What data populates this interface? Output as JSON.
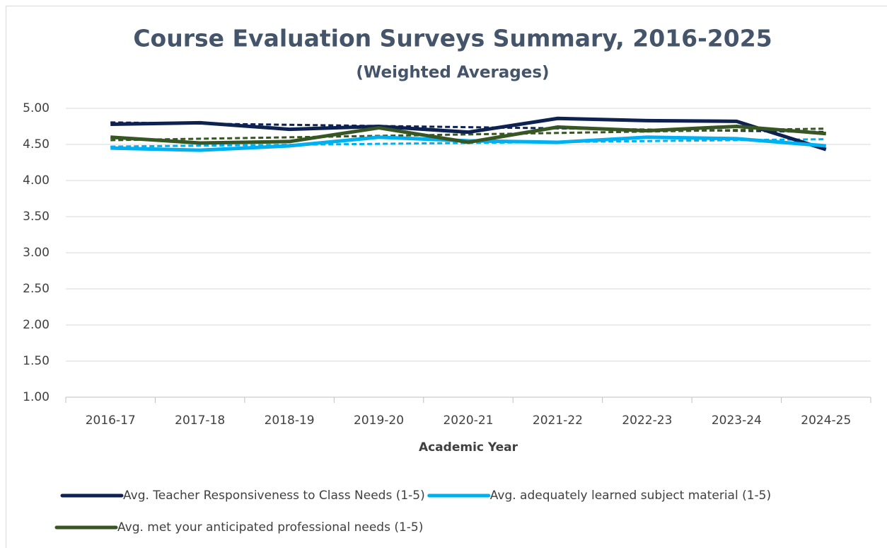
{
  "chart_data": {
    "type": "line",
    "title": "Course Evaluation Surveys Summary, 2016-2025",
    "subtitle": "(Weighted Averages)",
    "x_label": "Academic Year",
    "categories": [
      "2016-17",
      "2017-18",
      "2018-19",
      "2019-20",
      "2020-21",
      "2021-22",
      "2022-23",
      "2023-24",
      "2024-25"
    ],
    "series": [
      {
        "name": "Avg. Teacher Responsiveness to Class Needs (1-5)",
        "color": "#0e2252",
        "trendline": true,
        "values": [
          4.78,
          4.8,
          4.71,
          4.75,
          4.67,
          4.86,
          4.83,
          4.82,
          4.43
        ]
      },
      {
        "name": "Avg. adequately learned subject material (1-5)",
        "color": "#00b0f0",
        "trendline": true,
        "values": [
          4.45,
          4.42,
          4.48,
          4.6,
          4.55,
          4.53,
          4.6,
          4.58,
          4.48
        ]
      },
      {
        "name": "Avg. met your anticipated professional needs (1-5)",
        "color": "#375623",
        "trendline": true,
        "values": [
          4.6,
          4.52,
          4.54,
          4.73,
          4.53,
          4.74,
          4.69,
          4.75,
          4.65
        ]
      }
    ],
    "ylim": [
      1,
      5
    ],
    "yticks": [
      {
        "value": 1,
        "label": "1.00"
      },
      {
        "value": 1.5,
        "label": "1.50"
      },
      {
        "value": 2,
        "label": "2.00"
      },
      {
        "value": 2.5,
        "label": "2.50"
      },
      {
        "value": 3,
        "label": "3.00"
      },
      {
        "value": 3.5,
        "label": "3.50"
      },
      {
        "value": 4,
        "label": "4.00"
      },
      {
        "value": 4.5,
        "label": "4.50"
      },
      {
        "value": 5,
        "label": "5.00"
      }
    ],
    "grid": true,
    "legend": "bottom"
  }
}
